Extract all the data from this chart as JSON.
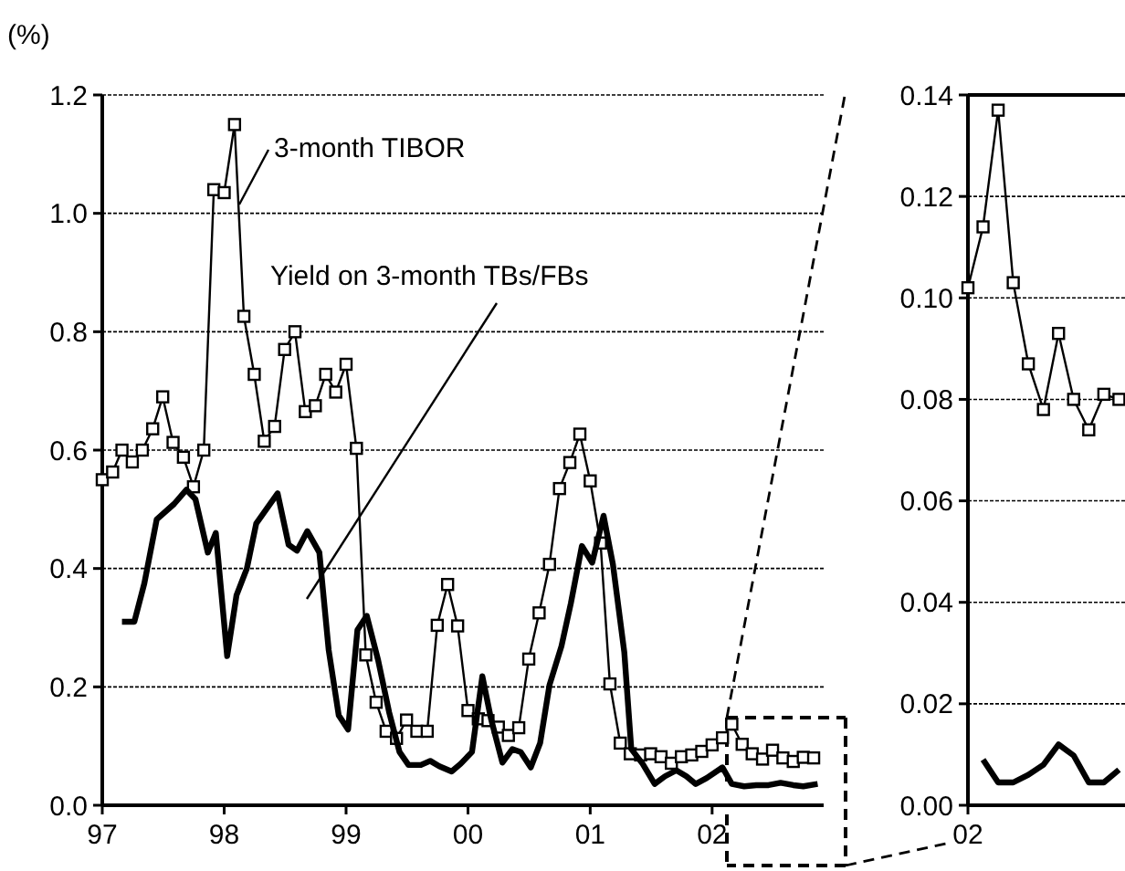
{
  "chart_data": [
    {
      "type": "line",
      "ylabel": "(%)",
      "xlim": [
        "1997-01",
        "2002-12"
      ],
      "xticks": [
        {
          "value": "1997",
          "label": "97"
        },
        {
          "value": "1998",
          "label": "98"
        },
        {
          "value": "1999",
          "label": "99"
        },
        {
          "value": "2000",
          "label": "00"
        },
        {
          "value": "2001",
          "label": "01"
        },
        {
          "value": "2002",
          "label": "02"
        }
      ],
      "ylim": [
        0,
        1.2
      ],
      "yticks": [
        {
          "value": 0,
          "label": "0.0"
        },
        {
          "value": 0.2,
          "label": "0.2"
        },
        {
          "value": 0.4,
          "label": "0.4"
        },
        {
          "value": 0.6,
          "label": "0.6"
        },
        {
          "value": 0.8,
          "label": "0.8"
        },
        {
          "value": 1,
          "label": "1.0"
        },
        {
          "value": 1.2,
          "label": "1.2"
        }
      ],
      "grid": "y",
      "series": [
        {
          "name": "3-month TIBOR",
          "color": "#000000",
          "marker": "square",
          "x": [
            "1997-01",
            "1997-02",
            "1997-03",
            "1997-04",
            "1997-05",
            "1997-06",
            "1997-07",
            "1997-08",
            "1997-09",
            "1997-10",
            "1997-11",
            "1997-12",
            "1998-01",
            "1998-02",
            "1998-03",
            "1998-04",
            "1998-05",
            "1998-06",
            "1998-07",
            "1998-08",
            "1998-09",
            "1998-10",
            "1998-11",
            "1998-12",
            "1999-01",
            "1999-02",
            "1999-03",
            "1999-04",
            "1999-05",
            "1999-06",
            "1999-07",
            "1999-08",
            "1999-09",
            "1999-10",
            "1999-11",
            "1999-12",
            "2000-01",
            "2000-02",
            "2000-03",
            "2000-04",
            "2000-05",
            "2000-06",
            "2000-07",
            "2000-08",
            "2000-09",
            "2000-10",
            "2000-11",
            "2000-12",
            "2001-01",
            "2001-02",
            "2001-03",
            "2001-04",
            "2001-05",
            "2001-06",
            "2001-07",
            "2001-08",
            "2001-09",
            "2001-10",
            "2001-11",
            "2001-12",
            "2002-01",
            "2002-02",
            "2002-03",
            "2002-04",
            "2002-05",
            "2002-06",
            "2002-07",
            "2002-08",
            "2002-09",
            "2002-10",
            "2002-11"
          ],
          "values": [
            0.55,
            0.563,
            0.6,
            0.58,
            0.6,
            0.636,
            0.69,
            0.613,
            0.588,
            0.538,
            0.6,
            1.04,
            1.035,
            1.15,
            0.826,
            0.728,
            0.615,
            0.64,
            0.77,
            0.8,
            0.665,
            0.675,
            0.728,
            0.698,
            0.745,
            0.603,
            0.254,
            0.174,
            0.125,
            0.113,
            0.144,
            0.125,
            0.125,
            0.304,
            0.373,
            0.303,
            0.16,
            0.146,
            0.143,
            0.132,
            0.118,
            0.131,
            0.247,
            0.325,
            0.407,
            0.535,
            0.579,
            0.627,
            0.548,
            0.443,
            0.205,
            0.105,
            0.087,
            0.085,
            0.087,
            0.082,
            0.071,
            0.082,
            0.085,
            0.091,
            0.102,
            0.114,
            0.137,
            0.103,
            0.087,
            0.078,
            0.093,
            0.08,
            0.074,
            0.081,
            0.08
          ]
        },
        {
          "name": "Yield on 3-month TBs/FBs",
          "color": "#000000",
          "marker": "none",
          "x": [
            "1997-03",
            "1997-04-07",
            "1997-05-07",
            "1997-06-13",
            "1997-08-04",
            "1997-09-10",
            "1997-10-07",
            "1997-11-13",
            "1997-12-07",
            "1998-01-10",
            "1998-02-07",
            "1998-03-10",
            "1998-04-07",
            "1998-06-10",
            "1998-07-13",
            "1998-08-07",
            "1998-09-07",
            "1998-10-13",
            "1998-11-10",
            "1998-12-10",
            "1999-01-07",
            "1999-02-04",
            "1999-03-04",
            "1999-04-07",
            "1999-05-10",
            "1999-06-10",
            "1999-07-07",
            "1999-08-13",
            "1999-09-10",
            "1999-10-07",
            "1999-11-13",
            "1999-12-10",
            "2000-01-13",
            "2000-02-13",
            "2000-03-10",
            "2000-04-13",
            "2000-05-13",
            "2000-06-07",
            "2000-07-07",
            "2000-08-04",
            "2000-09",
            "2000-10-07",
            "2000-11-04",
            "2000-12-07",
            "2001-01-07",
            "2001-02-10",
            "2001-03-10",
            "2001-04-13",
            "2001-05-04",
            "2001-06-07",
            "2001-07-13",
            "2001-08-13",
            "2001-09-16",
            "2001-10-16",
            "2001-11-13",
            "2001-12-16",
            "2002-02",
            "2002-03",
            "2002-04-07",
            "2002-05-13",
            "2002-06-19",
            "2002-07-25",
            "2002-09",
            "2002-10",
            "2002-11-13"
          ],
          "values": [
            0.31,
            0.31,
            0.375,
            0.483,
            0.509,
            0.533,
            0.517,
            0.427,
            0.46,
            0.252,
            0.355,
            0.4,
            0.476,
            0.527,
            0.44,
            0.43,
            0.463,
            0.427,
            0.262,
            0.152,
            0.128,
            0.296,
            0.32,
            0.245,
            0.157,
            0.09,
            0.068,
            0.068,
            0.075,
            0.066,
            0.057,
            0.07,
            0.09,
            0.218,
            0.146,
            0.072,
            0.095,
            0.09,
            0.064,
            0.105,
            0.203,
            0.269,
            0.341,
            0.438,
            0.41,
            0.489,
            0.407,
            0.259,
            0.095,
            0.07,
            0.036,
            0.049,
            0.059,
            0.049,
            0.036,
            0.046,
            0.064,
            0.036,
            0.032,
            0.034,
            0.034,
            0.038,
            0.034,
            0.032,
            0.036
          ]
        }
      ]
    },
    {
      "type": "line",
      "categories": [
        "02",
        null,
        null,
        null,
        null,
        null,
        null,
        null,
        null,
        null,
        null
      ],
      "ylim": [
        0,
        0.14
      ],
      "yticks": [
        {
          "value": 0,
          "label": "0.00"
        },
        {
          "value": 0.02,
          "label": "0.02"
        },
        {
          "value": 0.04,
          "label": "0.04"
        },
        {
          "value": 0.06,
          "label": "0.06"
        },
        {
          "value": 0.08,
          "label": "0.08"
        },
        {
          "value": 0.1,
          "label": "0.10"
        },
        {
          "value": 0.12,
          "label": "0.12"
        },
        {
          "value": 0.14,
          "label": "0.14"
        }
      ],
      "grid": "y",
      "series": [
        {
          "color": "#000000",
          "marker": "square",
          "values": [
            0.102,
            0.114,
            0.137,
            0.103,
            0.087,
            0.078,
            0.093,
            0.08,
            0.074,
            0.081,
            0.08
          ]
        },
        {
          "color": "#000000",
          "marker": "none",
          "values": [
            null,
            0.009,
            0.0045,
            0.0045,
            0.006,
            0.008,
            0.012,
            0.0098,
            0.0045,
            0.0045,
            0.007
          ]
        }
      ]
    }
  ]
}
